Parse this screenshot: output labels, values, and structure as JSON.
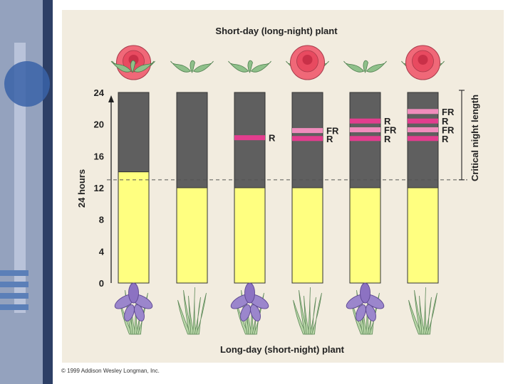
{
  "slide": {
    "copyright": "© 1999 Addison Wesley Longman, Inc."
  },
  "diagram": {
    "top_title": "Short-day (long-night) plant",
    "bottom_title": "Long-day (short-night) plant",
    "y_axis_label": "24 hours",
    "bracket_label": "Critical night length",
    "y_ticks": [
      "0",
      "4",
      "8",
      "12",
      "16",
      "20",
      "24"
    ],
    "colors": {
      "day": "#ffff80",
      "night": "#5f5f5f",
      "flash_R": "#e33d8e",
      "flash_FR": "#f08cbc",
      "rose": "#f06878",
      "iris": "#9b86cc",
      "leaf": "#8fc08a"
    },
    "critical_night_hours": 11,
    "bars": [
      {
        "day_hours": 14,
        "flashes": [],
        "top_flower": "rose",
        "bottom_plant": "iris"
      },
      {
        "day_hours": 12,
        "flashes": [],
        "top_flower": "leaves",
        "bottom_plant": "grass"
      },
      {
        "day_hours": 12,
        "flashes": [
          {
            "hour": 18.3,
            "label": "R"
          }
        ],
        "top_flower": "leaves",
        "bottom_plant": "iris"
      },
      {
        "day_hours": 12,
        "flashes": [
          {
            "hour": 19.2,
            "label": "FR"
          },
          {
            "hour": 18.2,
            "label": "R"
          }
        ],
        "top_flower": "rose",
        "bottom_plant": "grass"
      },
      {
        "day_hours": 12,
        "flashes": [
          {
            "hour": 20.4,
            "label": "R"
          },
          {
            "hour": 19.3,
            "label": "FR"
          },
          {
            "hour": 18.2,
            "label": "R"
          }
        ],
        "top_flower": "leaves",
        "bottom_plant": "iris"
      },
      {
        "day_hours": 12,
        "flashes": [
          {
            "hour": 21.6,
            "label": "FR"
          },
          {
            "hour": 20.4,
            "label": "R"
          },
          {
            "hour": 19.3,
            "label": "FR"
          },
          {
            "hour": 18.2,
            "label": "R"
          }
        ],
        "top_flower": "rose",
        "bottom_plant": "grass"
      }
    ]
  }
}
